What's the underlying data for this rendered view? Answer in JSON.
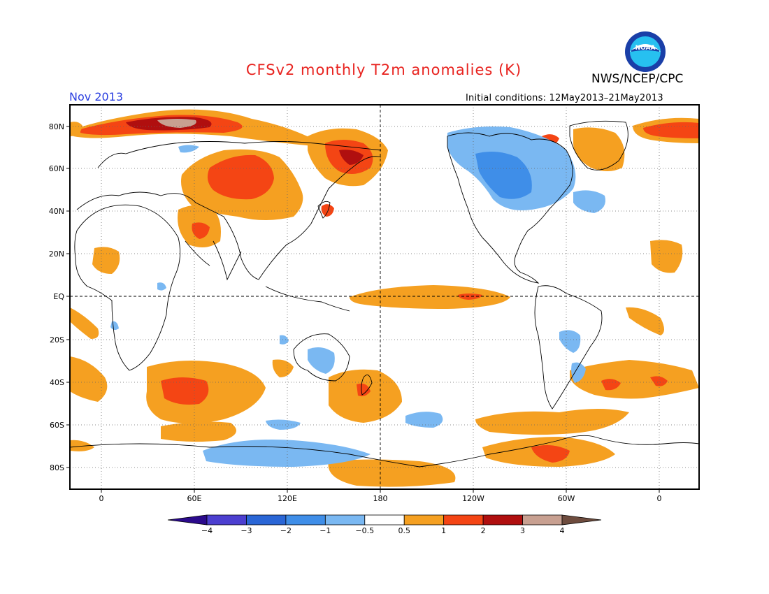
{
  "title": "CFSv2 monthly T2m anomalies (K)",
  "organization": "NWS/NCEP/CPC",
  "logo_icon": "noaa-logo-icon",
  "valid_month": "Nov 2013",
  "initial_conditions": "Initial conditions: 12May2013–21May2013",
  "lat_labels": [
    "80N",
    "60N",
    "40N",
    "20N",
    "EQ",
    "20S",
    "40S",
    "60S",
    "80S"
  ],
  "lon_labels": [
    "0",
    "60E",
    "120E",
    "180",
    "120W",
    "60W",
    "0"
  ],
  "colorbar": {
    "tick_labels": [
      "−4",
      "−3",
      "−2",
      "−1",
      "−0.5",
      "0.5",
      "1",
      "2",
      "3",
      "4"
    ],
    "colors": [
      "#2b0a8c",
      "#4c3fd0",
      "#2a66d6",
      "#3f8ee8",
      "#7ab8f2",
      "#ffffff",
      "#f5a021",
      "#f44514",
      "#b00f0f",
      "#c8a091",
      "#6e4c3e"
    ]
  },
  "colors": {
    "title": "#e8231f",
    "date": "#2b3fe0"
  }
}
